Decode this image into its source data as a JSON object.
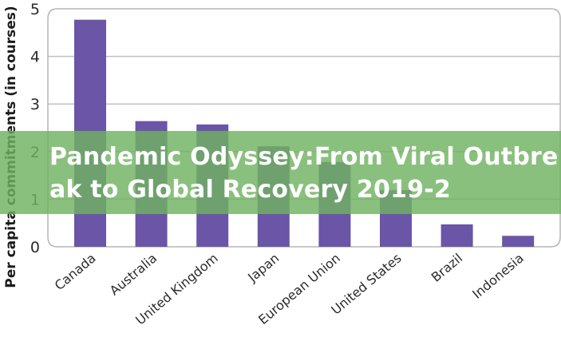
{
  "chart_data": {
    "type": "bar",
    "title": "",
    "xlabel": "",
    "ylabel": "Per capita commitments (in courses)",
    "categories": [
      "Canada",
      "Australia",
      "United Kingdom",
      "Japan",
      "European Union",
      "United States",
      "Brazil",
      "Indonesia"
    ],
    "values": [
      4.77,
      2.64,
      2.57,
      2.11,
      1.78,
      1.19,
      0.47,
      0.23
    ],
    "ylim": [
      0,
      5
    ],
    "yticks": [
      0,
      1,
      2,
      3,
      4,
      5
    ],
    "grid": true,
    "legend": null,
    "bar_color": "#6a55a6",
    "grid_color": "#c0c0c0"
  },
  "overlay": {
    "title": "Pandemic Odyssey:From Viral Outbreak to Global Recovery 2019-2",
    "band_color": "#70b262"
  }
}
